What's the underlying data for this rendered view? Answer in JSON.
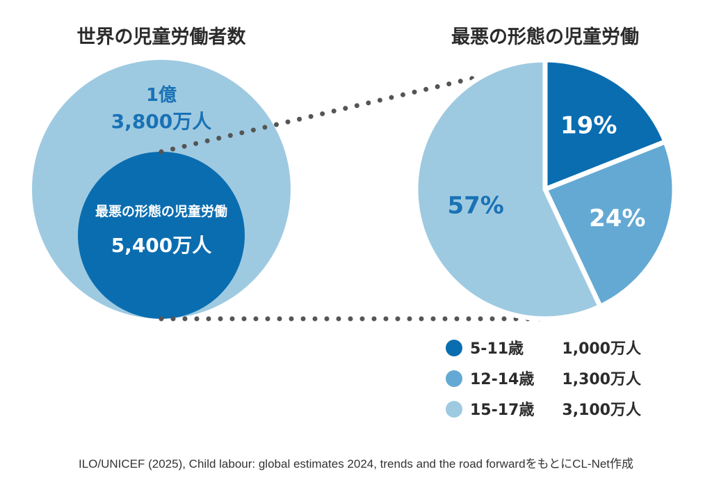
{
  "chart_data": [
    {
      "type": "nested-circle",
      "title": "世界の児童労働者数",
      "outer": {
        "value_label": [
          "1億",
          "3,800万人"
        ],
        "value": 138000000
      },
      "inner": {
        "name": "最悪の形態の児童労働",
        "value_label": "5,400万人",
        "value": 54000000
      }
    },
    {
      "type": "pie",
      "title": "最悪の形態の児童労働",
      "slices": [
        {
          "label": "5-11歳",
          "percent": 19,
          "percent_label": "19%",
          "count_label": "1,000万人",
          "color": "#0a6db0"
        },
        {
          "label": "12-14歳",
          "percent": 24,
          "percent_label": "24%",
          "count_label": "1,300万人",
          "color": "#64a9d3"
        },
        {
          "label": "15-17歳",
          "percent": 57,
          "percent_label": "57%",
          "count_label": "3,100万人",
          "color": "#9ecae1"
        }
      ]
    }
  ],
  "source": "ILO/UNICEF (2025), Child labour: global estimates 2024, trends and the road forwardをもとにCL-Net作成",
  "colors": {
    "outer_circle": "#9ecae1",
    "inner_circle": "#0a6db0",
    "connector": "#555555",
    "title_text": "#2b2b2b",
    "value_text": "#1a72b5"
  }
}
